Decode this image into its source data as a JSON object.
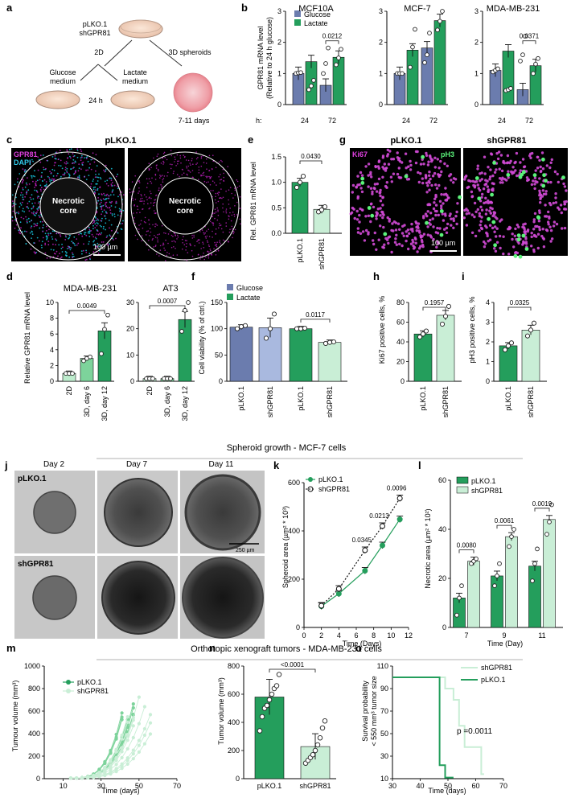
{
  "colors": {
    "dark_green": "#249e5c",
    "light_green": "#c9eed6",
    "blue": "#6b7cae",
    "light_blue": "#a9b9df",
    "mid_green": "#7dd39b",
    "magenta": "#c020c0",
    "cyan": "#18c8e0",
    "bright_green": "#5bf27a"
  },
  "panel_letters": {
    "a": "a",
    "b": "b",
    "c": "c",
    "d": "d",
    "e": "e",
    "f": "f",
    "g": "g",
    "h": "h",
    "i": "i",
    "j": "j",
    "k": "k",
    "l": "l",
    "m": "m",
    "n": "n",
    "o": "o"
  },
  "section_titles": {
    "spheroid": "Spheroid growth - MCF-7 cells",
    "xenograft": "Orthotopic xenograft tumors - MDA-MB-231 cells"
  },
  "panel_a": {
    "construct": "pLKO.1",
    "construct2": "shGPR81",
    "twoD": "2D",
    "threeD": "3D spheroids",
    "glucose": "Glucose",
    "glucose2": "medium",
    "lactate": "Lactate",
    "lactate2": "medium",
    "time2d": "24 h",
    "time3d": "7-11 days"
  },
  "panel_c": {
    "title": "pLKO.1",
    "gpr81": "GPR81",
    "dapi": "DAPI",
    "core1": "Necrotic",
    "core2": "core",
    "scale": "100 µm"
  },
  "panel_g": {
    "left": "pLKO.1",
    "right": "shGPR81",
    "ki67": "Ki67",
    "ph3": "pH3",
    "scale": "100 µm"
  },
  "panel_j": {
    "days": [
      "Day 2",
      "Day 7",
      "Day 11"
    ],
    "rows": [
      "pLKO.1",
      "shGPR81"
    ],
    "scale": "250 µm"
  },
  "chart_data": [
    {
      "panel": "b",
      "type": "bar",
      "ylabel": "GPR81 mRNA level",
      "ylabel2": "(Relative to 24 h glucose)",
      "row_label": "h:",
      "legend": [
        "Glucose",
        "Lactate"
      ],
      "ylim": [
        0,
        3
      ],
      "subplots": [
        {
          "title": "MCF10A",
          "categories": [
            "24",
            "72"
          ],
          "series": [
            {
              "name": "Glucose",
              "values": [
                1.0,
                0.62
              ]
            },
            {
              "name": "Lactate",
              "values": [
                1.38,
                1.52
              ]
            }
          ],
          "points": [
            [
              1.0,
              1.02,
              1.03
            ],
            [
              0.48,
              0.6,
              0.78
            ],
            [
              1.0,
              1.32,
              1.82
            ],
            [
              1.28,
              1.5,
              1.78
            ]
          ],
          "annotations": [
            {
              "text": "0.0212",
              "pair": 1
            }
          ]
        },
        {
          "title": "MCF-7",
          "categories": [
            "24",
            "72"
          ],
          "series": [
            {
              "name": "Glucose",
              "values": [
                1.0,
                1.82
              ]
            },
            {
              "name": "Lactate",
              "values": [
                1.75,
                2.7
              ]
            }
          ],
          "points": [
            [
              1.0,
              1.0,
              1.0
            ],
            [
              1.2,
              1.85,
              2.42
            ],
            [
              1.35,
              1.6,
              2.3
            ],
            [
              2.4,
              2.68,
              3.0
            ]
          ],
          "annotations": []
        },
        {
          "title": "MDA-MB-231",
          "categories": [
            "24",
            "72"
          ],
          "series": [
            {
              "name": "Glucose",
              "values": [
                1.1,
                0.48
              ]
            },
            {
              "name": "Lactate",
              "values": [
                1.72,
                1.25
              ]
            }
          ],
          "points": [
            [
              1.05,
              1.1,
              1.15
            ],
            [
              0.45,
              0.48,
              0.52
            ],
            [
              1.4,
              1.6,
              2.2
            ],
            [
              1.0,
              1.3,
              1.48
            ]
          ],
          "annotations": [
            {
              "text": "0.0371",
              "pair": 1
            }
          ]
        }
      ]
    },
    {
      "panel": "d",
      "type": "bar",
      "ylabel": "Relative GPR81 mRNA level",
      "subplots": [
        {
          "title": "MDA-MB-231",
          "ylim": [
            0,
            10
          ],
          "yticks": [
            0,
            2,
            4,
            6,
            8,
            10
          ],
          "categories": [
            "2D",
            "3D, day 6",
            "3D, day 12"
          ],
          "values": [
            1.0,
            2.9,
            6.4
          ],
          "points": [
            [
              1,
              1,
              1
            ],
            [
              2.6,
              2.9,
              3.1
            ],
            [
              3.5,
              6.6,
              8.4
            ]
          ],
          "annotations": [
            {
              "text": "0.0049"
            }
          ]
        },
        {
          "title": "AT3",
          "ylim": [
            0,
            30
          ],
          "yticks": [
            0,
            10,
            20,
            30
          ],
          "categories": [
            "2D",
            "3D, day 6",
            "3D, day 12"
          ],
          "values": [
            1.0,
            1.0,
            23.5
          ],
          "points": [
            [
              1,
              1,
              1
            ],
            [
              1,
              1,
              1
            ],
            [
              19,
              27,
              30
            ]
          ],
          "annotations": [
            {
              "text": "0.0007"
            }
          ]
        }
      ]
    },
    {
      "panel": "e",
      "type": "bar",
      "ylabel": "Rel. GPR81 mRNA level",
      "ylim": [
        0,
        1.5
      ],
      "yticks": [
        0.0,
        0.5,
        1.0,
        1.5
      ],
      "categories": [
        "pLKO.1",
        "shGPR81"
      ],
      "values": [
        1.0,
        0.47
      ],
      "points": [
        [
          0.9,
          1.0,
          1.12
        ],
        [
          0.42,
          0.46,
          0.52
        ]
      ],
      "annotations": [
        {
          "text": "0.0430"
        }
      ]
    },
    {
      "panel": "f",
      "type": "bar",
      "ylabel": "Cell viability (% of ctrl.)",
      "ylim": [
        0,
        150
      ],
      "yticks": [
        0,
        50,
        100,
        150
      ],
      "legend": [
        "Glucose",
        "Lactate"
      ],
      "categories": [
        "pLKO.1",
        "shGPR81",
        "pLKO.1",
        "shGPR81"
      ],
      "values": [
        103,
        102,
        100,
        74
      ],
      "points": [
        [
          100,
          104,
          106
        ],
        [
          82,
          100,
          128
        ],
        [
          100,
          100,
          101
        ],
        [
          72,
          74,
          75
        ]
      ],
      "annotations": [
        {
          "text": "0.0117"
        }
      ]
    },
    {
      "panel": "h",
      "type": "bar",
      "ylabel": "Ki67 positive cells, %",
      "ylim": [
        0,
        80
      ],
      "yticks": [
        0,
        20,
        40,
        60,
        80
      ],
      "categories": [
        "pLKO.1",
        "shGPR81"
      ],
      "values": [
        48,
        67
      ],
      "points": [
        [
          45,
          48,
          51
        ],
        [
          58,
          66,
          76
        ]
      ],
      "annotations": [
        {
          "text": "0.1957"
        }
      ]
    },
    {
      "panel": "i",
      "type": "bar",
      "ylabel": "pH3 positive cells, %",
      "ylim": [
        0,
        4
      ],
      "yticks": [
        0,
        1,
        2,
        3,
        4
      ],
      "categories": [
        "pLKO.1",
        "shGPR81"
      ],
      "values": [
        1.8,
        2.6
      ],
      "points": [
        [
          1.6,
          1.8,
          1.95
        ],
        [
          2.3,
          2.6,
          2.95
        ]
      ],
      "annotations": [
        {
          "text": "0.0325"
        }
      ]
    },
    {
      "panel": "k",
      "type": "line",
      "xlabel": "Time (Days)",
      "ylabel": "Spheroid area (µm² * 10³)",
      "xlim": [
        0,
        12
      ],
      "ylim": [
        0,
        600
      ],
      "xticks": [
        0,
        2,
        4,
        6,
        8,
        10,
        12
      ],
      "yticks": [
        0,
        200,
        400,
        600
      ],
      "series": [
        {
          "name": "pLKO.1",
          "x": [
            2,
            4,
            7,
            9,
            11
          ],
          "y": [
            88,
            140,
            235,
            340,
            448
          ]
        },
        {
          "name": "shGPR81",
          "x": [
            2,
            4,
            7,
            9,
            11
          ],
          "y": [
            90,
            160,
            320,
            420,
            535
          ]
        }
      ],
      "annotations": [
        {
          "text": "0.0345",
          "x": 7
        },
        {
          "text": "0.0213",
          "x": 9
        },
        {
          "text": "0.0096",
          "x": 11
        }
      ]
    },
    {
      "panel": "l",
      "type": "bar",
      "xlabel": "Time (Day)",
      "ylabel": "Necrotic area (µm² * 10²)",
      "ylim": [
        0,
        60
      ],
      "yticks": [
        0,
        20,
        40,
        60
      ],
      "categories": [
        "7",
        "9",
        "11"
      ],
      "legend": [
        "pLKO.1",
        "shGPR81"
      ],
      "series": [
        {
          "name": "pLKO.1",
          "values": [
            12,
            21,
            25
          ]
        },
        {
          "name": "shGPR81",
          "values": [
            27,
            37,
            44
          ]
        }
      ],
      "points": [
        [
          [
            5,
            12,
            17
          ],
          [
            26,
            27,
            28
          ]
        ],
        [
          [
            17,
            21,
            26
          ],
          [
            33,
            37,
            40
          ]
        ],
        [
          [
            19,
            26,
            32
          ],
          [
            38,
            43,
            50
          ]
        ]
      ],
      "annotations": [
        "0.0080",
        "0.0061",
        "0.0019"
      ]
    },
    {
      "panel": "m",
      "type": "line",
      "xlabel": "Time (days)",
      "ylabel": "Tumour volume (mm³)",
      "xlim": [
        0,
        70
      ],
      "ylim": [
        0,
        1000
      ],
      "xticks": [
        10,
        30,
        50,
        70
      ],
      "yticks": [
        0,
        200,
        400,
        600,
        800,
        1000
      ],
      "legend": [
        "pLKO.1",
        "shGPR81"
      ]
    },
    {
      "panel": "n",
      "type": "bar",
      "ylabel": "Tumor volume (mm³)",
      "ylim": [
        0,
        800
      ],
      "yticks": [
        0,
        200,
        400,
        600,
        800
      ],
      "categories": [
        "pLKO.1",
        "shGPR81"
      ],
      "values": [
        580,
        228
      ],
      "points": [
        [
          340,
          440,
          500,
          520,
          560,
          600,
          640,
          660,
          740
        ],
        [
          110,
          130,
          150,
          170,
          200,
          240,
          290,
          360,
          410
        ]
      ],
      "annotations": [
        {
          "text": "<0.0001"
        }
      ]
    },
    {
      "panel": "o",
      "type": "line",
      "xlabel": "Time (days)",
      "ylabel": "Survival probability",
      "ylabel2": "< 550 mm³ tumor size",
      "xlim": [
        30,
        70
      ],
      "ylim": [
        10,
        110
      ],
      "xticks": [
        30,
        40,
        50,
        60,
        70
      ],
      "yticks": [
        10,
        30,
        50,
        70,
        90,
        110
      ],
      "series": [
        {
          "name": "shGPR81",
          "steps": [
            [
              30,
              100
            ],
            [
              49,
              100
            ],
            [
              49,
              90
            ],
            [
              52,
              90
            ],
            [
              52,
              80
            ],
            [
              54,
              80
            ],
            [
              54,
              57
            ],
            [
              56,
              57
            ],
            [
              56,
              38
            ],
            [
              62,
              38
            ],
            [
              62,
              14
            ],
            [
              63,
              14
            ]
          ]
        },
        {
          "name": "pLKO.1",
          "steps": [
            [
              30,
              100
            ],
            [
              47,
              100
            ],
            [
              47,
              22
            ],
            [
              49,
              22
            ],
            [
              49,
              11
            ],
            [
              52,
              11
            ]
          ]
        }
      ],
      "annotations": [
        {
          "text": "p =0.0011"
        }
      ]
    }
  ]
}
